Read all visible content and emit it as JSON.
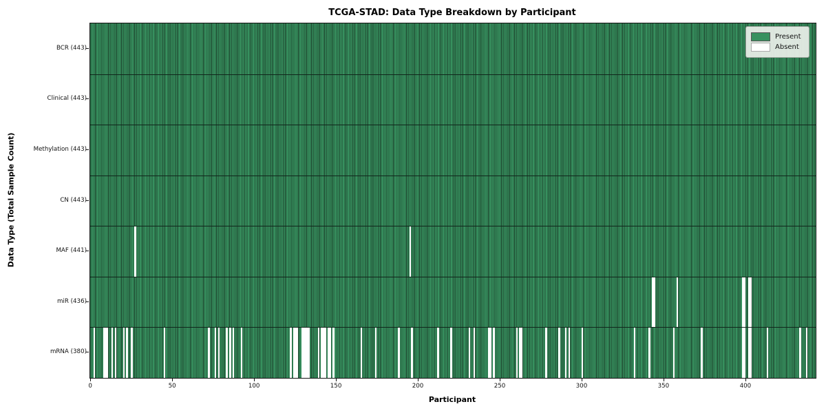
{
  "chart_data": {
    "type": "heatmap",
    "title": "TCGA-STAD: Data Type Breakdown by Participant",
    "xlabel": "Participant",
    "ylabel": "Data Type (Total Sample Count)",
    "n_participants": 443,
    "x_ticks": [
      0,
      50,
      100,
      150,
      200,
      250,
      300,
      350,
      400
    ],
    "xlim": [
      0,
      443
    ],
    "grid": false,
    "legend_position": "upper right",
    "colors": {
      "present": "#37915f",
      "bar_edge": "#1b3d29",
      "absent": "#ffffff",
      "frame": "#111111",
      "legend_bg": "#ecf0ea"
    },
    "legend": [
      {
        "label": "Present",
        "color": "#37915f"
      },
      {
        "label": "Absent",
        "color": "#ffffff"
      }
    ],
    "rows": [
      {
        "label": "BCR (443)",
        "data_type": "BCR",
        "total": 443,
        "absent": []
      },
      {
        "label": "Clinical (443)",
        "data_type": "Clinical",
        "total": 443,
        "absent": []
      },
      {
        "label": "Methylation (443)",
        "data_type": "Methylation",
        "total": 443,
        "absent": []
      },
      {
        "label": "CN (443)",
        "data_type": "CN",
        "total": 443,
        "absent": []
      },
      {
        "label": "MAF (441)",
        "data_type": "MAF",
        "total": 441,
        "absent": [
          27,
          195
        ]
      },
      {
        "label": "miR (436)",
        "data_type": "miR",
        "total": 436,
        "absent": [
          343,
          344,
          358,
          398,
          399,
          402,
          403
        ]
      },
      {
        "label": "mRNA (380)",
        "data_type": "mRNA",
        "total": 380,
        "absent": [
          2,
          8,
          9,
          10,
          13,
          15,
          20,
          22,
          25,
          45,
          72,
          76,
          78,
          83,
          85,
          87,
          92,
          122,
          124,
          125,
          126,
          129,
          130,
          131,
          132,
          133,
          139,
          141,
          142,
          143,
          145,
          146,
          148,
          165,
          174,
          188,
          196,
          212,
          220,
          231,
          234,
          243,
          244,
          246,
          260,
          262,
          263,
          278,
          286,
          290,
          292,
          300,
          332,
          341,
          356,
          373,
          398,
          399,
          402,
          403,
          413,
          433,
          437
        ]
      }
    ]
  }
}
